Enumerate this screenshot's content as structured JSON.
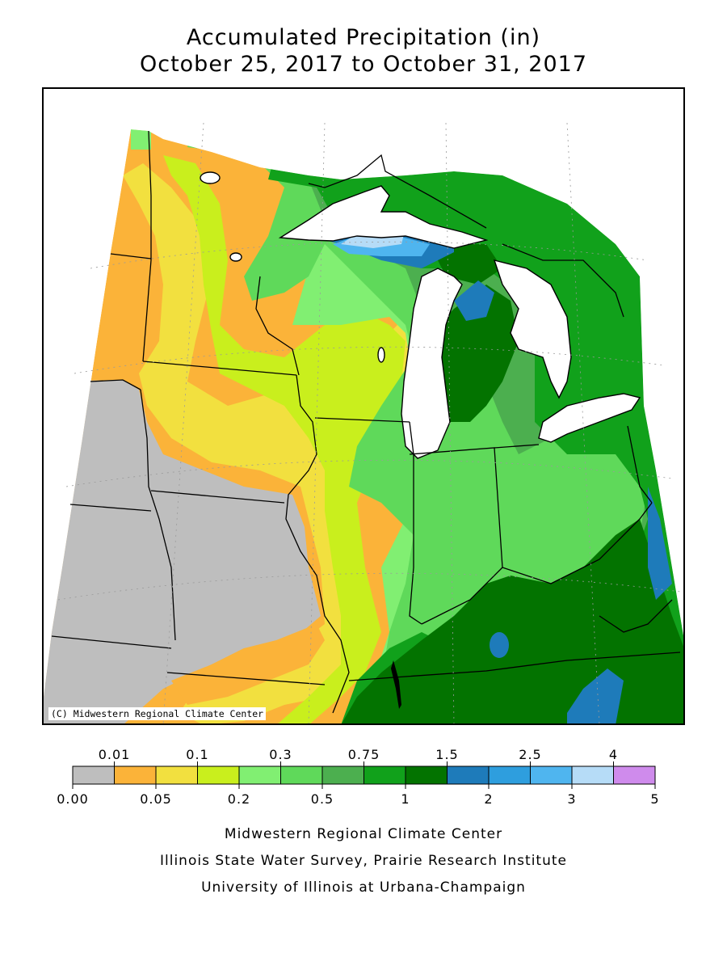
{
  "title": {
    "line1": "Accumulated Precipitation (in)",
    "line2": "October 25, 2017 to October 31, 2017"
  },
  "map": {
    "copyright": "(C) Midwestern Regional Climate Center",
    "lake_color": "#ffffff",
    "no_data_color": "#bebebe"
  },
  "legend": {
    "top_labels": [
      "0.01",
      "0.1",
      "0.3",
      "0.75",
      "1.5",
      "2.5",
      "4"
    ],
    "bottom_labels": [
      "0.00",
      "0.05",
      "0.2",
      "0.5",
      "1",
      "2",
      "3",
      "5"
    ],
    "colors": [
      "#bebebe",
      "#fbb339",
      "#f2e03f",
      "#c9ef1d",
      "#81ef72",
      "#5fd95a",
      "#4caf4f",
      "#11a11b",
      "#037300",
      "#1e7bba",
      "#2e9ede",
      "#4fb5ef",
      "#b6dcf7",
      "#cf8bec"
    ]
  },
  "footer": {
    "line1": "Midwestern Regional Climate Center",
    "line2": "Illinois State Water Survey, Prairie Research Institute",
    "line3": "University of Illinois at Urbana-Champaign"
  }
}
